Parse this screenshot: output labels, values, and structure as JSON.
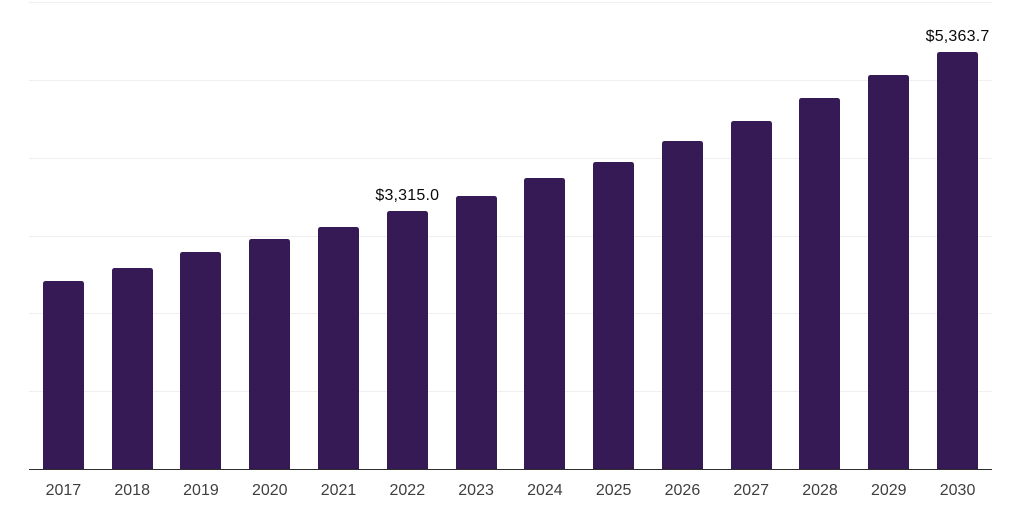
{
  "chart_data": {
    "type": "bar",
    "title": "",
    "xlabel": "",
    "ylabel": "",
    "categories": [
      "2017",
      "2018",
      "2019",
      "2020",
      "2021",
      "2022",
      "2023",
      "2024",
      "2025",
      "2026",
      "2027",
      "2028",
      "2029",
      "2030"
    ],
    "values": [
      2415,
      2580,
      2790,
      2955,
      3110,
      3315.0,
      3510,
      3740,
      3945,
      4215,
      4470,
      4765,
      5060,
      5363.7
    ],
    "data_labels": [
      "",
      "",
      "",
      "",
      "",
      "$3,315.0",
      "",
      "",
      "",
      "",
      "",
      "",
      "",
      "$5,363.7"
    ],
    "ylim": [
      0,
      6000
    ],
    "gridline_step": 1000,
    "grid": true,
    "legend": false,
    "colors": {
      "bar": "#351a55",
      "gridline": "#efefef",
      "axis": "#2e2e2e",
      "tick_label": "#3f3f3f",
      "data_label": "#0a0a0a",
      "background": "#ffffff"
    }
  }
}
